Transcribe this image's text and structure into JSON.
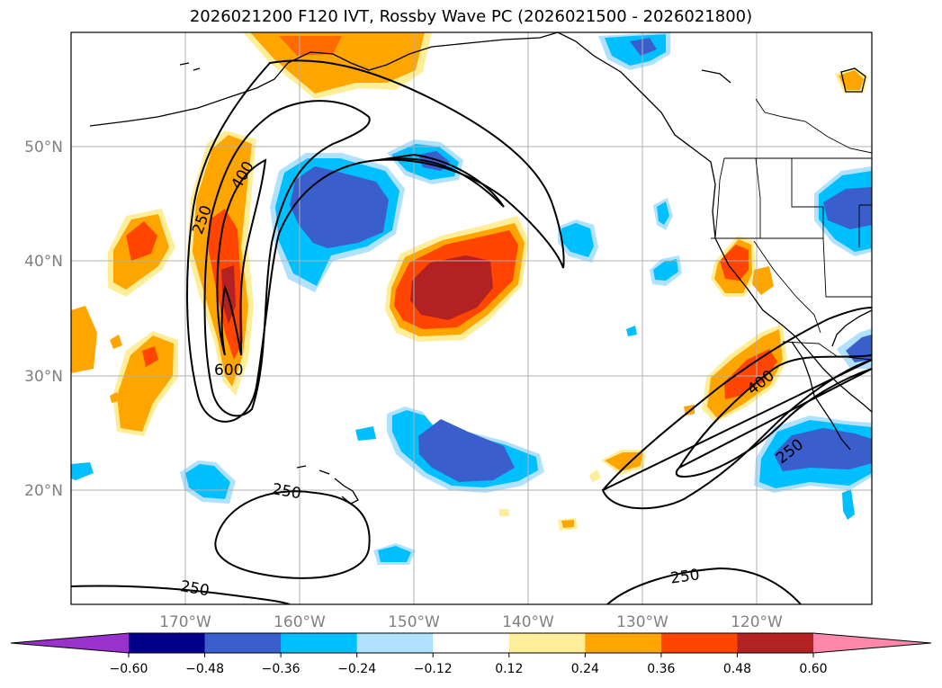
{
  "title": "2026021200 F120 IVT, Rossby Wave PC (2026021500 - 2026021800)",
  "map": {
    "lat_labels": [
      "50°N",
      "40°N",
      "30°N",
      "20°N"
    ],
    "lon_labels": [
      "170°W",
      "160°W",
      "150°W",
      "140°W",
      "130°W",
      "120°W"
    ],
    "contour_labels": [
      "600",
      "400",
      "250",
      "250",
      "250",
      "400",
      "250",
      "250"
    ]
  },
  "colorbar": {
    "colors": [
      "#9932cc",
      "#00008b",
      "#3a5fcd",
      "#00bfff",
      "#b0e2ff",
      "#ffffff",
      "#ffee99",
      "#ffa500",
      "#ff4500",
      "#b22222",
      "#ff88aa"
    ],
    "ticks": [
      "−0.60",
      "−0.48",
      "−0.36",
      "−0.24",
      "−0.12",
      "0.12",
      "0.24",
      "0.36",
      "0.48",
      "0.60"
    ],
    "levels": [
      -0.6,
      -0.48,
      -0.36,
      -0.24,
      -0.12,
      0.12,
      0.24,
      0.36,
      0.48,
      0.6
    ]
  }
}
